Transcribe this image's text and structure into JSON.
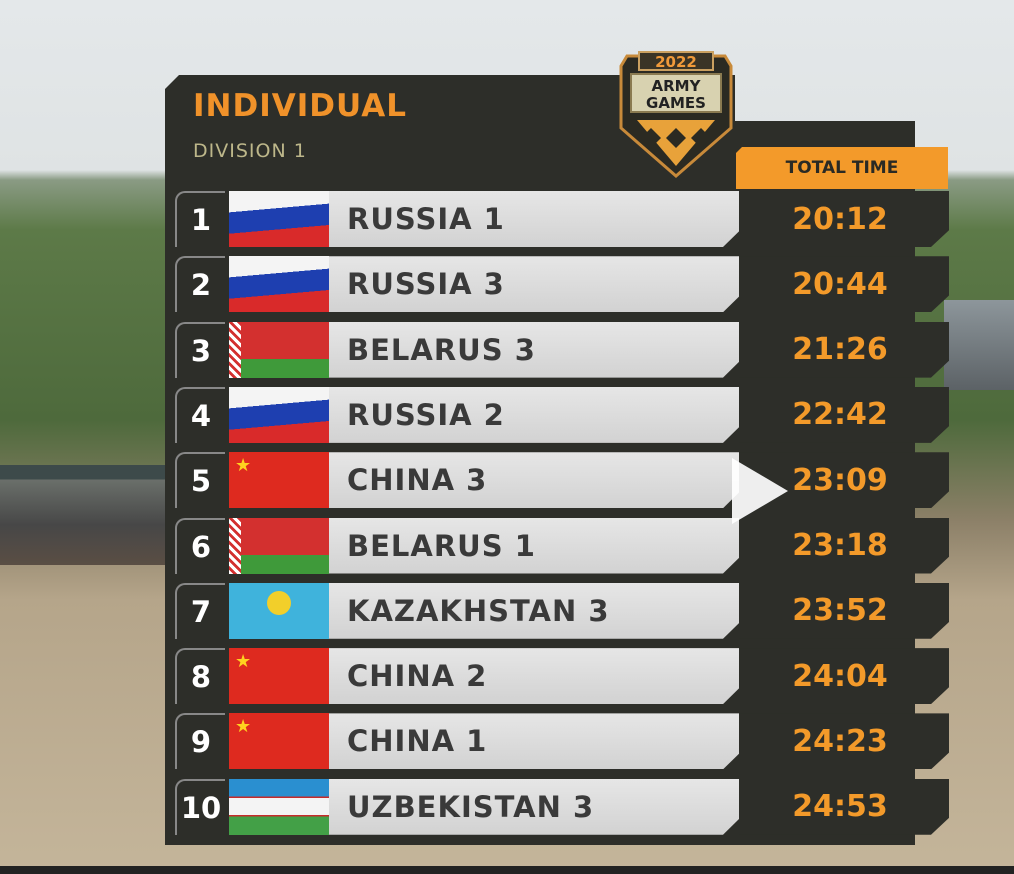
{
  "header": {
    "title": "INDIVIDUAL",
    "subtitle": "DIVISION 1",
    "logo_text": "2022 ARMY GAMES",
    "column": "TOTAL TIME"
  },
  "colors": {
    "accent": "#f39a2a",
    "panel": "#2d2e29"
  },
  "video": {
    "overlay_icon": "play-icon"
  },
  "rows": [
    {
      "rank": "1",
      "team": "RUSSIA 1",
      "flag": "russia",
      "time": "20:12"
    },
    {
      "rank": "2",
      "team": "RUSSIA 3",
      "flag": "russia",
      "time": "20:44"
    },
    {
      "rank": "3",
      "team": "BELARUS 3",
      "flag": "belarus",
      "time": "21:26"
    },
    {
      "rank": "4",
      "team": "RUSSIA 2",
      "flag": "russia",
      "time": "22:42"
    },
    {
      "rank": "5",
      "team": "CHINA 3",
      "flag": "china",
      "time": "23:09"
    },
    {
      "rank": "6",
      "team": "BELARUS 1",
      "flag": "belarus",
      "time": "23:18"
    },
    {
      "rank": "7",
      "team": "KAZAKHSTAN 3",
      "flag": "kazakhstan",
      "time": "23:52"
    },
    {
      "rank": "8",
      "team": "CHINA 2",
      "flag": "china",
      "time": "24:04"
    },
    {
      "rank": "9",
      "team": "CHINA 1",
      "flag": "china",
      "time": "24:23"
    },
    {
      "rank": "10",
      "team": "UZBEKISTAN 3",
      "flag": "uzbekistan",
      "time": "24:53"
    }
  ]
}
